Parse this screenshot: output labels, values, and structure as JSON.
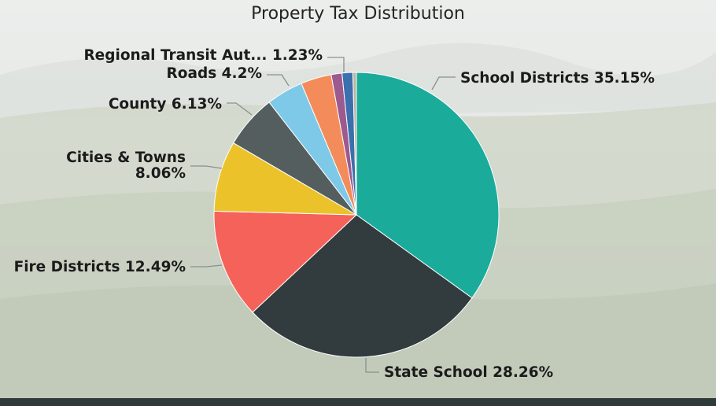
{
  "chart_data": {
    "type": "pie",
    "title": "Property Tax Distribution",
    "slices": [
      {
        "label": "School Districts",
        "value": 35.15,
        "value_label": "35.15%",
        "color": "#1aab9b"
      },
      {
        "label": "State School",
        "value": 28.26,
        "value_label": "28.26%",
        "color": "#323c3f"
      },
      {
        "label": "Fire Districts",
        "value": 12.49,
        "value_label": "12.49%",
        "color": "#f5625a"
      },
      {
        "label": "Cities & Towns",
        "value": 8.06,
        "value_label": "8.06%",
        "color": "#ecc22a"
      },
      {
        "label": "County",
        "value": 6.13,
        "value_label": "6.13%",
        "color": "#555e5e"
      },
      {
        "label": "Roads",
        "value": 4.2,
        "value_label": "4.2%",
        "color": "#7ec9e8"
      },
      {
        "label": "",
        "value": 3.5,
        "value_label": "",
        "color": "#f38c5a"
      },
      {
        "label": "",
        "value": 1.23,
        "value_label": "",
        "color": "#9c5a8e"
      },
      {
        "label": "Regional Transit Aut...",
        "value": 1.23,
        "value_label": "1.23%",
        "color": "#3c6fae"
      },
      {
        "label": "",
        "value": 0.4,
        "value_label": "",
        "color": "#b8b5a0"
      }
    ],
    "start_angle_deg": 0,
    "direction": "clockwise",
    "legend": "none",
    "data_labels": "outside with leader lines"
  }
}
